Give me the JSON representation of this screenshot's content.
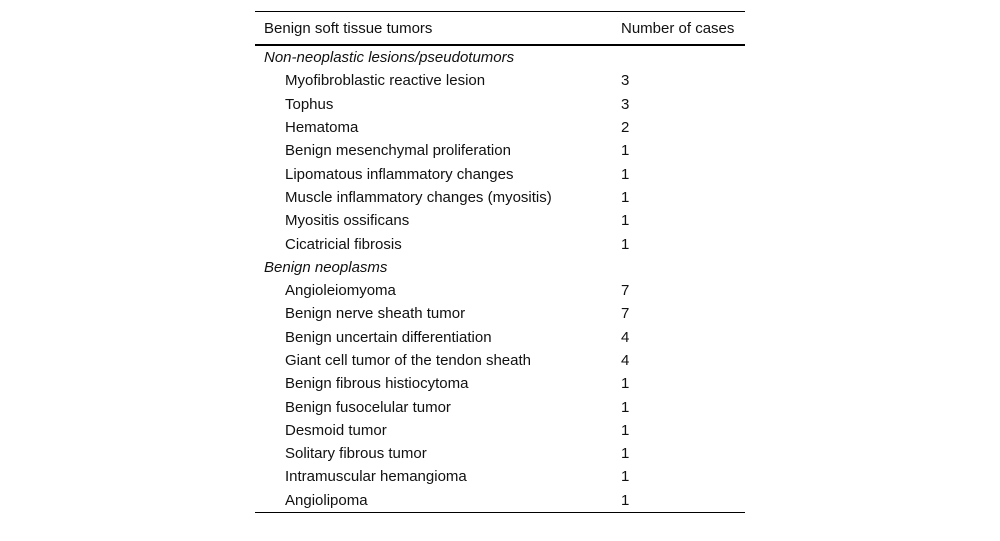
{
  "table": {
    "columns": [
      "Benign soft tissue tumors",
      "Number of cases"
    ],
    "sections": [
      {
        "label": "Non-neoplastic lesions/pseudotumors",
        "rows": [
          {
            "name": "Myofibroblastic reactive lesion",
            "cases": "3"
          },
          {
            "name": "Tophus",
            "cases": "3"
          },
          {
            "name": "Hematoma",
            "cases": "2"
          },
          {
            "name": "Benign mesenchymal proliferation",
            "cases": "1"
          },
          {
            "name": "Lipomatous inflammatory changes",
            "cases": "1"
          },
          {
            "name": "Muscle inflammatory changes (myositis)",
            "cases": "1"
          },
          {
            "name": "Myositis ossificans",
            "cases": "1"
          },
          {
            "name": "Cicatricial fibrosis",
            "cases": "1"
          }
        ]
      },
      {
        "label": "Benign neoplasms",
        "rows": [
          {
            "name": "Angioleiomyoma",
            "cases": "7"
          },
          {
            "name": "Benign nerve sheath tumor",
            "cases": "7"
          },
          {
            "name": "Benign uncertain differentiation",
            "cases": "4"
          },
          {
            "name": "Giant cell tumor of the tendon sheath",
            "cases": "4"
          },
          {
            "name": "Benign fibrous histiocytoma",
            "cases": "1"
          },
          {
            "name": "Benign fusocelular tumor",
            "cases": "1"
          },
          {
            "name": "Desmoid tumor",
            "cases": "1"
          },
          {
            "name": "Solitary fibrous tumor",
            "cases": "1"
          },
          {
            "name": "Intramuscular hemangioma",
            "cases": "1"
          },
          {
            "name": "Angiolipoma",
            "cases": "1"
          }
        ]
      }
    ]
  },
  "chart_data": {
    "type": "table",
    "title": "Benign soft tissue tumors",
    "columns": [
      "Benign soft tissue tumors",
      "Number of cases"
    ],
    "groups": [
      {
        "group": "Non-neoplastic lesions/pseudotumors",
        "categories": [
          "Myofibroblastic reactive lesion",
          "Tophus",
          "Hematoma",
          "Benign mesenchymal proliferation",
          "Lipomatous inflammatory changes",
          "Muscle inflammatory changes (myositis)",
          "Myositis ossificans",
          "Cicatricial fibrosis"
        ],
        "values": [
          3,
          3,
          2,
          1,
          1,
          1,
          1,
          1
        ]
      },
      {
        "group": "Benign neoplasms",
        "categories": [
          "Angioleiomyoma",
          "Benign nerve sheath tumor",
          "Benign uncertain differentiation",
          "Giant cell tumor of the tendon sheath",
          "Benign fibrous histiocytoma",
          "Benign fusocelular tumor",
          "Desmoid tumor",
          "Solitary fibrous tumor",
          "Intramuscular hemangioma",
          "Angiolipoma"
        ],
        "values": [
          7,
          7,
          4,
          4,
          1,
          1,
          1,
          1,
          1,
          1
        ]
      }
    ]
  }
}
